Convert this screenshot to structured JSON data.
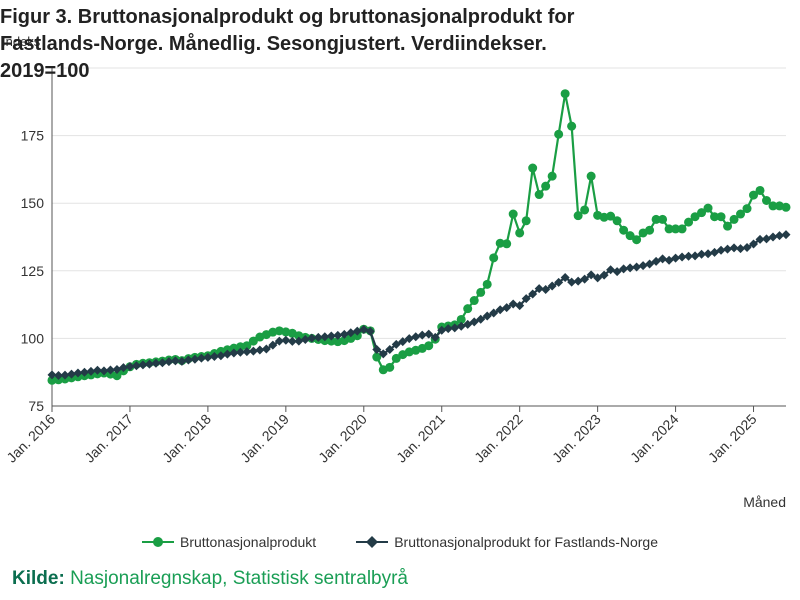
{
  "header": {
    "title": "Figur 3. Bruttonasjonalprodukt og bruttonasjonalprodukt for Fastlands-Norge. Månedlig. Sesongjustert. Verdiindekser. 2019=100",
    "ylabel": "Indeks"
  },
  "source": {
    "label": "Kilde:",
    "text": "Nasjonalregnskap, Statistisk sentralbyrå"
  },
  "chart_data": {
    "type": "line",
    "xlabel": "Måned",
    "ylabel": "Indeks",
    "ylim": [
      75,
      200
    ],
    "yticks": [
      75,
      100,
      125,
      150,
      175
    ],
    "xlim": [
      0,
      113
    ],
    "xticks": [
      {
        "t": 0,
        "label": "Jan. 2016"
      },
      {
        "t": 12,
        "label": "Jan. 2017"
      },
      {
        "t": 24,
        "label": "Jan. 2018"
      },
      {
        "t": 36,
        "label": "Jan. 2019"
      },
      {
        "t": 48,
        "label": "Jan. 2020"
      },
      {
        "t": 60,
        "label": "Jan. 2021"
      },
      {
        "t": 72,
        "label": "Jan. 2022"
      },
      {
        "t": 84,
        "label": "Jan. 2023"
      },
      {
        "t": 96,
        "label": "Jan. 2024"
      },
      {
        "t": 108,
        "label": "Jan. 2025"
      }
    ],
    "grid": true,
    "legend_position": "bottom",
    "start": "Jan. 2016",
    "series": [
      {
        "name": "Bruttonasjonalprodukt",
        "color": "#1a9e44",
        "marker": "circle",
        "values": [
          84.5,
          84.7,
          85.0,
          85.4,
          85.8,
          86.2,
          86.5,
          86.9,
          87.2,
          86.8,
          86.2,
          88.0,
          89.5,
          90.4,
          90.8,
          91.0,
          91.3,
          91.6,
          92.0,
          92.2,
          91.8,
          92.5,
          93.0,
          93.3,
          93.6,
          94.4,
          95.2,
          95.8,
          96.4,
          96.9,
          97.3,
          99.0,
          100.5,
          101.4,
          102.3,
          102.8,
          102.4,
          101.9,
          101.0,
          100.4,
          100.0,
          99.6,
          99.2,
          99.0,
          98.8,
          99.2,
          100.0,
          101.0,
          103.4,
          102.8,
          93.1,
          88.4,
          89.3,
          92.6,
          94.0,
          95.0,
          95.6,
          96.3,
          97.3,
          99.7,
          104.2,
          104.6,
          105.0,
          107.0,
          111.0,
          114.0,
          117.0,
          120.0,
          129.8,
          135.2,
          135.0,
          146.0,
          139.0,
          143.5,
          163.0,
          153.2,
          156.3,
          160.0,
          175.5,
          190.5,
          178.5,
          145.4,
          147.5,
          160.0,
          145.5,
          144.8,
          145.2,
          143.5,
          140.0,
          138.0,
          136.5,
          139.0,
          140.0,
          144.0,
          144.0,
          140.5,
          140.5,
          140.5,
          143.0,
          145.0,
          146.5,
          148.2,
          145.0,
          145.0,
          141.5,
          144.0,
          146.0,
          148.0,
          153.0,
          154.7,
          151.0,
          149.0,
          149.0,
          148.5
        ]
      },
      {
        "name": "Bruttonasjonalprodukt for Fastlands-Norge",
        "color": "#233b47",
        "marker": "diamond",
        "values": [
          86.5,
          86.3,
          86.4,
          86.8,
          87.2,
          87.5,
          87.8,
          88.2,
          88.0,
          88.3,
          88.5,
          89.2,
          89.6,
          89.9,
          90.2,
          90.5,
          90.8,
          91.0,
          91.4,
          91.7,
          91.5,
          92.0,
          92.3,
          92.7,
          93.0,
          93.3,
          93.6,
          94.2,
          94.6,
          94.9,
          95.1,
          95.3,
          95.7,
          96.1,
          97.5,
          99.0,
          99.3,
          98.9,
          99.0,
          99.6,
          100.1,
          100.4,
          100.6,
          100.9,
          101.1,
          101.5,
          102.1,
          102.7,
          103.3,
          102.6,
          95.9,
          94.3,
          95.9,
          97.8,
          98.8,
          99.9,
          100.6,
          101.2,
          101.6,
          100.4,
          103.0,
          103.6,
          103.9,
          104.5,
          105.2,
          106.1,
          107.1,
          108.3,
          109.4,
          110.6,
          111.4,
          112.7,
          112.1,
          114.7,
          116.4,
          118.4,
          118.1,
          119.4,
          120.7,
          122.5,
          120.8,
          121.2,
          121.9,
          123.5,
          122.4,
          123.4,
          125.4,
          124.7,
          125.7,
          126.1,
          126.4,
          126.9,
          127.5,
          128.5,
          129.4,
          128.9,
          129.7,
          130.1,
          130.4,
          130.5,
          131.1,
          131.3,
          131.8,
          132.6,
          133.0,
          133.5,
          133.2,
          133.6,
          134.9,
          136.6,
          136.8,
          137.5,
          138.0,
          138.4
        ]
      }
    ]
  }
}
